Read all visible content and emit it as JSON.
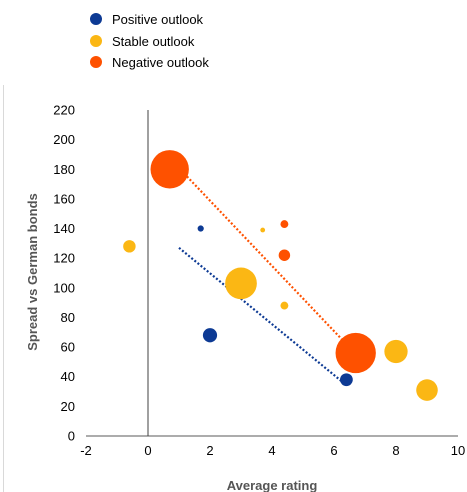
{
  "chart_data": {
    "type": "scatter",
    "subtype": "bubble",
    "title": "",
    "xlabel": "Average rating",
    "ylabel": "Spread vs German bonds",
    "xlim": [
      -2,
      10
    ],
    "ylim": [
      0,
      220
    ],
    "x_ticks": [
      -2,
      0,
      2,
      4,
      6,
      8,
      10
    ],
    "y_ticks": [
      0,
      20,
      40,
      60,
      80,
      100,
      120,
      140,
      160,
      180,
      200,
      220
    ],
    "grid": false,
    "x_zero_line": true,
    "legend": {
      "position": "top-left",
      "entries": [
        {
          "label": "Positive outlook",
          "color": "#0d3a94"
        },
        {
          "label": "Stable outlook",
          "color": "#fbb714"
        },
        {
          "label": "Negative outlook",
          "color": "#fe5100"
        }
      ]
    },
    "series": [
      {
        "name": "Positive outlook",
        "color": "#0d3a94",
        "points": [
          {
            "x": 1.7,
            "y": 140,
            "size": 0.5
          },
          {
            "x": 2.0,
            "y": 68,
            "size": 2.6
          },
          {
            "x": 6.4,
            "y": 38,
            "size": 2.1
          }
        ]
      },
      {
        "name": "Stable outlook",
        "color": "#fbb714",
        "points": [
          {
            "x": -0.6,
            "y": 128,
            "size": 2
          },
          {
            "x": 3.7,
            "y": 139,
            "size": 0.3
          },
          {
            "x": 3.0,
            "y": 103,
            "size": 13
          },
          {
            "x": 4.4,
            "y": 88,
            "size": 0.8
          },
          {
            "x": 8.0,
            "y": 57,
            "size": 7
          },
          {
            "x": 9.0,
            "y": 31,
            "size": 6
          }
        ]
      },
      {
        "name": "Negative outlook",
        "color": "#fe5100",
        "points": [
          {
            "x": 0.7,
            "y": 180,
            "size": 19
          },
          {
            "x": 4.4,
            "y": 143,
            "size": 0.8
          },
          {
            "x": 4.4,
            "y": 122,
            "size": 1.7
          },
          {
            "x": 6.7,
            "y": 56,
            "size": 21
          }
        ]
      }
    ],
    "trendlines": [
      {
        "series": "Positive outlook",
        "color": "#0d3a94",
        "style": "dotted",
        "from": [
          1.0,
          127
        ],
        "to": [
          6.3,
          36
        ]
      },
      {
        "series": "Negative outlook",
        "color": "#fe5100",
        "style": "dotted",
        "from": [
          0.9,
          183
        ],
        "to": [
          6.4,
          62
        ]
      }
    ]
  }
}
